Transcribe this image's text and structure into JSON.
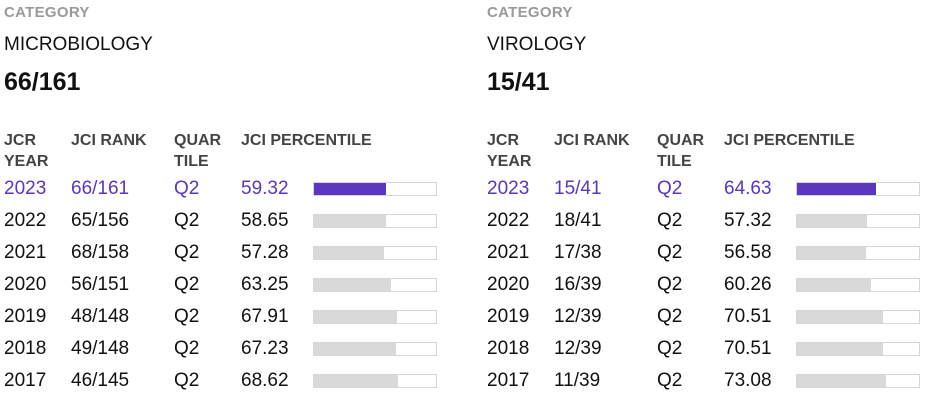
{
  "panels": [
    {
      "category_label": "CATEGORY",
      "category_name": "MICROBIOLOGY",
      "category_rank": "66/161",
      "headers": {
        "year": "JCR YEAR",
        "rank": "JCI RANK",
        "quartile": "QUARTILE",
        "percentile": "JCI PERCENTILE"
      },
      "rows": [
        {
          "year": "2023",
          "rank": "66/161",
          "quartile": "Q2",
          "percentile": "59.32",
          "percentile_value": 59.32,
          "current": true
        },
        {
          "year": "2022",
          "rank": "65/156",
          "quartile": "Q2",
          "percentile": "58.65",
          "percentile_value": 58.65,
          "current": false
        },
        {
          "year": "2021",
          "rank": "68/158",
          "quartile": "Q2",
          "percentile": "57.28",
          "percentile_value": 57.28,
          "current": false
        },
        {
          "year": "2020",
          "rank": "56/151",
          "quartile": "Q2",
          "percentile": "63.25",
          "percentile_value": 63.25,
          "current": false
        },
        {
          "year": "2019",
          "rank": "48/148",
          "quartile": "Q2",
          "percentile": "67.91",
          "percentile_value": 67.91,
          "current": false
        },
        {
          "year": "2018",
          "rank": "49/148",
          "quartile": "Q2",
          "percentile": "67.23",
          "percentile_value": 67.23,
          "current": false
        },
        {
          "year": "2017",
          "rank": "46/145",
          "quartile": "Q2",
          "percentile": "68.62",
          "percentile_value": 68.62,
          "current": false
        }
      ]
    },
    {
      "category_label": "CATEGORY",
      "category_name": "VIROLOGY",
      "category_rank": "15/41",
      "headers": {
        "year": "JCR YEAR",
        "rank": "JCI RANK",
        "quartile": "QUARTILE",
        "percentile": "JCI PERCENTILE"
      },
      "rows": [
        {
          "year": "2023",
          "rank": "15/41",
          "quartile": "Q2",
          "percentile": "64.63",
          "percentile_value": 64.63,
          "current": true
        },
        {
          "year": "2022",
          "rank": "18/41",
          "quartile": "Q2",
          "percentile": "57.32",
          "percentile_value": 57.32,
          "current": false
        },
        {
          "year": "2021",
          "rank": "17/38",
          "quartile": "Q2",
          "percentile": "56.58",
          "percentile_value": 56.58,
          "current": false
        },
        {
          "year": "2020",
          "rank": "16/39",
          "quartile": "Q2",
          "percentile": "60.26",
          "percentile_value": 60.26,
          "current": false
        },
        {
          "year": "2019",
          "rank": "12/39",
          "quartile": "Q2",
          "percentile": "70.51",
          "percentile_value": 70.51,
          "current": false
        },
        {
          "year": "2018",
          "rank": "12/39",
          "quartile": "Q2",
          "percentile": "70.51",
          "percentile_value": 70.51,
          "current": false
        },
        {
          "year": "2017",
          "rank": "11/39",
          "quartile": "Q2",
          "percentile": "73.08",
          "percentile_value": 73.08,
          "current": false
        }
      ]
    }
  ],
  "colors": {
    "accent": "#5a36c1",
    "bar_bg": "#d9d9d9",
    "label_gray": "#9a9a9a"
  }
}
